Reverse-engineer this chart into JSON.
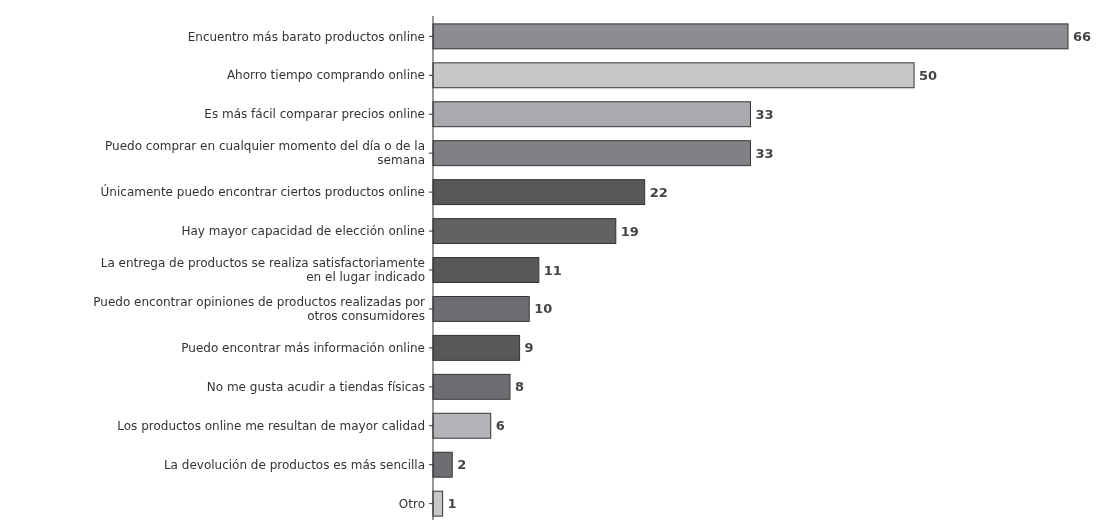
{
  "chart_data": {
    "type": "bar",
    "orientation": "horizontal",
    "data_labels": true,
    "categories": [
      "Encuentro más barato productos online",
      "Ahorro tiempo comprando online",
      "Es más fácil comparar precios online",
      "Puedo comprar en cualquier momento del día o de la semana",
      "Únicamente puedo encontrar ciertos productos online",
      "Hay mayor capacidad de elección online",
      "La entrega de productos se realiza satisfactoriamente en el lugar indicado",
      "Puedo encontrar opiniones de productos realizadas por otros consumidores",
      "Puedo encontrar más información online",
      "No me gusta acudir a tiendas físicas",
      "Los productos online me resultan de mayor calidad",
      "La devolución de productos es más sencilla",
      "Otro"
    ],
    "values": [
      66,
      50,
      33,
      33,
      22,
      19,
      11,
      10,
      9,
      8,
      6,
      2,
      1
    ],
    "colors": [
      "#8c8d91",
      "#c6c7c9",
      "#a9aaad",
      "#808185",
      "#58585b",
      "#626265",
      "#58585b",
      "#6d6e72",
      "#58585b",
      "#6d6e72",
      "#b3b4b7",
      "#6d6e72",
      "#c6c7c9"
    ]
  }
}
